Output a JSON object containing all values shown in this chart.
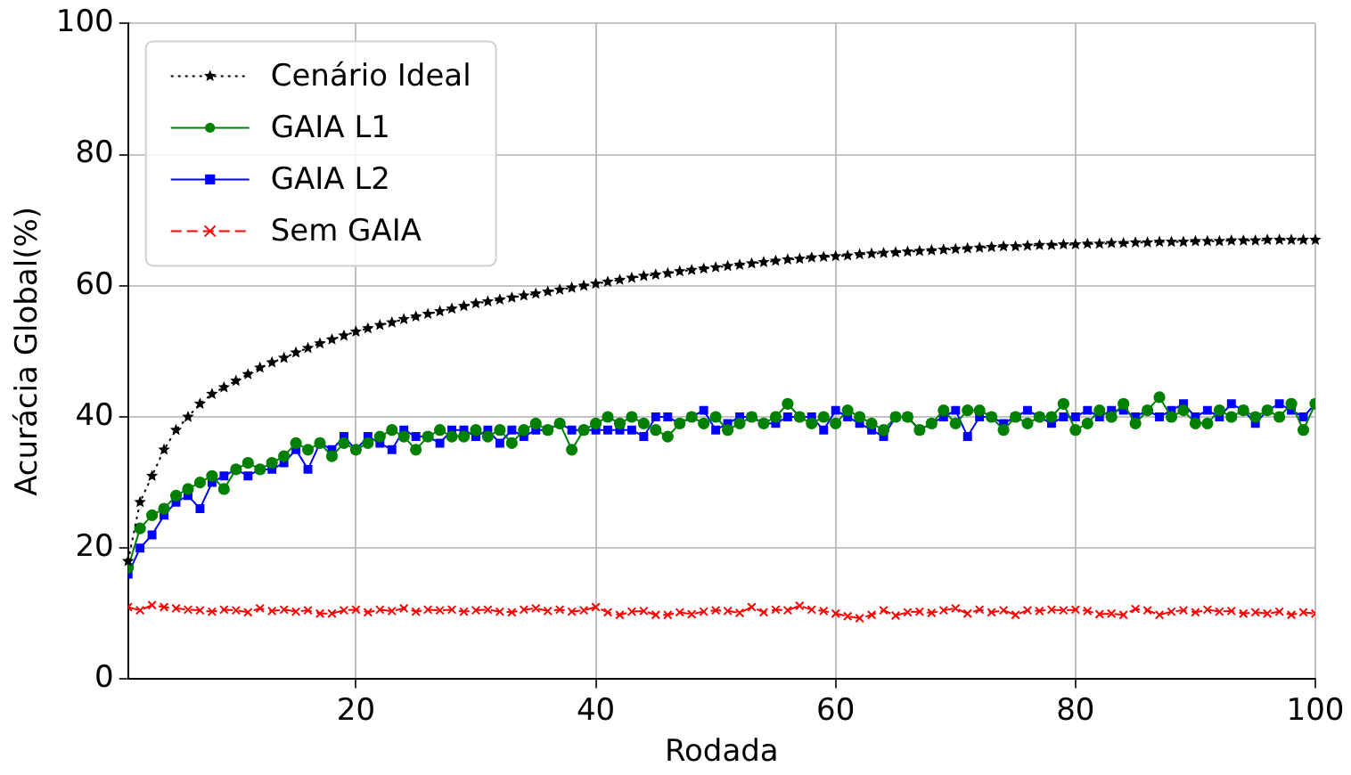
{
  "chart_data": {
    "type": "line",
    "xlabel": "Rodada",
    "ylabel": "Acurácia Global(%)",
    "x": [
      1,
      2,
      3,
      4,
      5,
      6,
      7,
      8,
      9,
      10,
      11,
      12,
      13,
      14,
      15,
      16,
      17,
      18,
      19,
      20,
      21,
      22,
      23,
      24,
      25,
      26,
      27,
      28,
      29,
      30,
      31,
      32,
      33,
      34,
      35,
      36,
      37,
      38,
      39,
      40,
      41,
      42,
      43,
      44,
      45,
      46,
      47,
      48,
      49,
      50,
      51,
      52,
      53,
      54,
      55,
      56,
      57,
      58,
      59,
      60,
      61,
      62,
      63,
      64,
      65,
      66,
      67,
      68,
      69,
      70,
      71,
      72,
      73,
      74,
      75,
      76,
      77,
      78,
      79,
      80,
      81,
      82,
      83,
      84,
      85,
      86,
      87,
      88,
      89,
      90,
      91,
      92,
      93,
      94,
      95,
      96,
      97,
      98,
      99,
      100
    ],
    "xlim": [
      1,
      100
    ],
    "xticks": [
      20,
      40,
      60,
      80,
      100
    ],
    "ylim": [
      0,
      100
    ],
    "yticks": [
      0,
      20,
      40,
      60,
      80,
      100
    ],
    "grid": true,
    "legend": "top left",
    "series": [
      {
        "name": "Cenário Ideal",
        "color": "#000000",
        "marker": "star",
        "line_style": "dotted",
        "values": [
          18,
          27,
          31,
          35,
          38,
          40,
          42,
          43.5,
          44.5,
          45.5,
          46.5,
          47.5,
          48.3,
          49,
          49.8,
          50.5,
          51.2,
          51.8,
          52.4,
          53,
          53.5,
          54,
          54.4,
          54.9,
          55.3,
          55.7,
          56.1,
          56.5,
          56.9,
          57.3,
          57.6,
          57.9,
          58.2,
          58.5,
          58.8,
          59.1,
          59.4,
          59.7,
          60,
          60.3,
          60.6,
          60.9,
          61.2,
          61.5,
          61.7,
          61.9,
          62.2,
          62.4,
          62.6,
          62.8,
          63,
          63.2,
          63.4,
          63.6,
          63.8,
          64,
          64.1,
          64.3,
          64.4,
          64.5,
          64.6,
          64.8,
          64.9,
          65,
          65.1,
          65.2,
          65.3,
          65.4,
          65.5,
          65.6,
          65.7,
          65.8,
          65.9,
          66,
          66,
          66.1,
          66.2,
          66.2,
          66.3,
          66.3,
          66.4,
          66.4,
          66.5,
          66.5,
          66.6,
          66.6,
          66.7,
          66.7,
          66.7,
          66.8,
          66.8,
          66.8,
          66.9,
          66.9,
          66.9,
          67,
          67,
          67,
          67,
          67
        ]
      },
      {
        "name": "GAIA L1",
        "color": "#008000",
        "marker": "circle",
        "line_style": "solid",
        "values": [
          17,
          23,
          25,
          26,
          28,
          29,
          30,
          31,
          29,
          32,
          33,
          32,
          33,
          34,
          36,
          35,
          36,
          34,
          36,
          35,
          36,
          37,
          38,
          37,
          35,
          37,
          38,
          37,
          37,
          38,
          37,
          38,
          36,
          38,
          39,
          38,
          39,
          35,
          38,
          39,
          40,
          39,
          40,
          39,
          38,
          37,
          39,
          40,
          39,
          40,
          38,
          39,
          40,
          39,
          40,
          42,
          40,
          39,
          40,
          39,
          41,
          40,
          39,
          38,
          40,
          40,
          38,
          39,
          41,
          39,
          41,
          41,
          40,
          38,
          40,
          39,
          40,
          40,
          42,
          38,
          39,
          41,
          40,
          42,
          39,
          41,
          43,
          40,
          41,
          39,
          39,
          41,
          40,
          41,
          40,
          41,
          40,
          42,
          38,
          42
        ]
      },
      {
        "name": "GAIA L2",
        "color": "#0000ff",
        "marker": "square",
        "line_style": "solid",
        "values": [
          16,
          20,
          22,
          25,
          27,
          28,
          26,
          30,
          31,
          32,
          31,
          32,
          32,
          33,
          35,
          32,
          36,
          35,
          37,
          35,
          37,
          36,
          35,
          38,
          37,
          37,
          36,
          38,
          38,
          37,
          38,
          36,
          38,
          37,
          38,
          38,
          39,
          38,
          38,
          38,
          38,
          38,
          38,
          37,
          40,
          40,
          39,
          40,
          41,
          38,
          39,
          40,
          40,
          39,
          39,
          40,
          40,
          40,
          38,
          41,
          40,
          39,
          38,
          37,
          40,
          40,
          38,
          39,
          40,
          41,
          37,
          40,
          40,
          39,
          40,
          41,
          40,
          39,
          40,
          40,
          41,
          40,
          41,
          41,
          40,
          41,
          40,
          41,
          42,
          40,
          41,
          40,
          42,
          41,
          39,
          41,
          42,
          41,
          40,
          42
        ]
      },
      {
        "name": "Sem GAIA",
        "color": "#ff0000",
        "marker": "cross",
        "line_style": "dashed",
        "values": [
          11,
          10.5,
          11.3,
          11,
          10.8,
          10.6,
          10.5,
          10.3,
          10.6,
          10.5,
          10.2,
          10.8,
          10.4,
          10.6,
          10.3,
          10.5,
          10,
          10,
          10.5,
          10.6,
          10.2,
          10.6,
          10.4,
          10.8,
          10.3,
          10.6,
          10.5,
          10.6,
          10.3,
          10.5,
          10.6,
          10.3,
          10.2,
          10.6,
          10.8,
          10.4,
          10.6,
          10.3,
          10.5,
          11,
          10.2,
          9.8,
          10.3,
          10.4,
          9.8,
          9.8,
          10.2,
          9.9,
          10.3,
          10.5,
          10.4,
          10.1,
          11,
          10.2,
          10.6,
          10.5,
          11.2,
          10.6,
          10.4,
          10,
          9.6,
          9.3,
          9.8,
          10.5,
          9.7,
          10.2,
          10.3,
          10.1,
          10.5,
          10.8,
          10,
          10.6,
          10.2,
          10.5,
          9.8,
          10.5,
          10.4,
          10.6,
          10.5,
          10.6,
          10.4,
          9.9,
          10,
          9.8,
          10.7,
          10.5,
          9.8,
          10.3,
          10.5,
          10.2,
          10.6,
          10.3,
          10.4,
          10,
          10.2,
          10,
          10.3,
          9.8,
          10.2,
          10
        ]
      }
    ]
  }
}
